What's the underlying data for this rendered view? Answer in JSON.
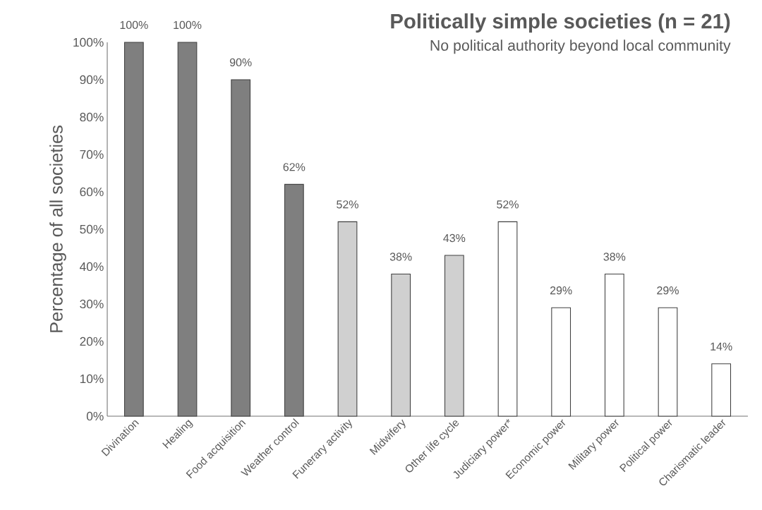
{
  "chart_data": {
    "type": "bar",
    "title": "Politically simple societies (n = 21)",
    "subtitle": "No political authority beyond local community",
    "ylabel": "Percentage of all societies",
    "categories": [
      "Divination",
      "Healing",
      "Food acquisition",
      "Weather control",
      "Funerary activity",
      "Midwifery",
      "Other life cycle",
      "Judiciary power*",
      "Economic power",
      "Military power",
      "Political power",
      "Charismatic leader"
    ],
    "values": [
      100,
      100,
      90,
      62,
      52,
      38,
      43,
      52,
      29,
      38,
      29,
      14
    ],
    "value_labels": [
      "100%",
      "100%",
      "90%",
      "62%",
      "52%",
      "38%",
      "43%",
      "52%",
      "29%",
      "38%",
      "29%",
      "14%"
    ],
    "colors": [
      "#7f7f7f",
      "#7f7f7f",
      "#7f7f7f",
      "#7f7f7f",
      "#d0d0d0",
      "#d0d0d0",
      "#d0d0d0",
      "#ffffff",
      "#ffffff",
      "#ffffff",
      "#ffffff",
      "#ffffff"
    ],
    "ylim": [
      0,
      100
    ],
    "yticks": [
      {
        "value": 0,
        "label": "0%"
      },
      {
        "value": 10,
        "label": "10%"
      },
      {
        "value": 20,
        "label": "20%"
      },
      {
        "value": 30,
        "label": "30%"
      },
      {
        "value": 40,
        "label": "40%"
      },
      {
        "value": 50,
        "label": "50%"
      },
      {
        "value": 60,
        "label": "60%"
      },
      {
        "value": 70,
        "label": "70%"
      },
      {
        "value": 80,
        "label": "80%"
      },
      {
        "value": 90,
        "label": "90%"
      },
      {
        "value": 100,
        "label": "100%"
      }
    ],
    "grid": false
  }
}
